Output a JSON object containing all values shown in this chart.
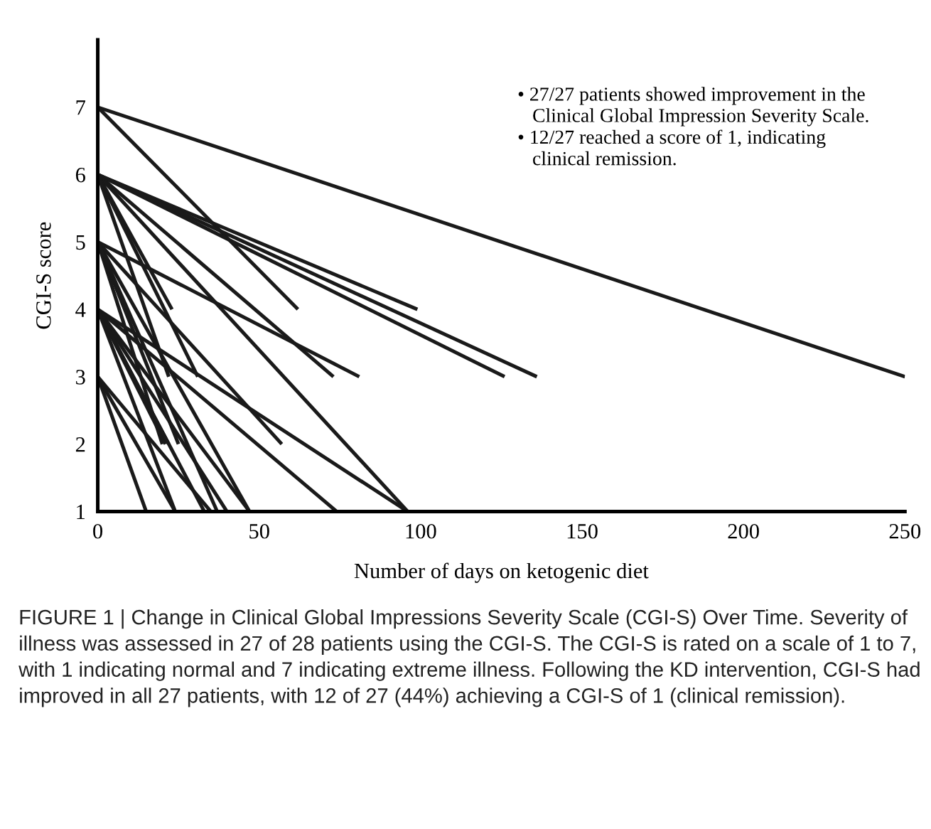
{
  "chart_data": {
    "type": "line",
    "xlabel": "Number of days on ketogenic diet",
    "ylabel": "CGI-S score",
    "xlim": [
      0,
      250
    ],
    "xticks": [
      0,
      50,
      100,
      150,
      200,
      250
    ],
    "ylim": [
      1,
      8
    ],
    "yticks": [
      1,
      2,
      3,
      4,
      5,
      6,
      7
    ],
    "grid": false,
    "legend": false,
    "marker": "none",
    "line_style": "solid",
    "series": [
      {
        "color": "#1a1a1a",
        "x": [
          0,
          250
        ],
        "values": [
          7,
          3
        ]
      },
      {
        "color": "#1a1a1a",
        "x": [
          0,
          62
        ],
        "values": [
          7,
          4
        ]
      },
      {
        "color": "#1a1a1a",
        "x": [
          0,
          99
        ],
        "values": [
          6,
          4
        ]
      },
      {
        "color": "#1a1a1a",
        "x": [
          0,
          126
        ],
        "values": [
          6,
          3
        ]
      },
      {
        "color": "#1a1a1a",
        "x": [
          0,
          136
        ],
        "values": [
          6,
          3
        ]
      },
      {
        "color": "#1a1a1a",
        "x": [
          0,
          73
        ],
        "values": [
          6,
          3
        ]
      },
      {
        "color": "#1a1a1a",
        "x": [
          0,
          96
        ],
        "values": [
          6,
          1
        ]
      },
      {
        "color": "#1a1a1a",
        "x": [
          0,
          23
        ],
        "values": [
          6,
          4
        ]
      },
      {
        "color": "#1a1a1a",
        "x": [
          0,
          31
        ],
        "values": [
          6,
          3
        ]
      },
      {
        "color": "#1a1a1a",
        "x": [
          0,
          22
        ],
        "values": [
          6,
          3
        ]
      },
      {
        "color": "#1a1a1a",
        "x": [
          0,
          81
        ],
        "values": [
          5,
          3
        ]
      },
      {
        "color": "#1a1a1a",
        "x": [
          0,
          57
        ],
        "values": [
          5,
          2
        ]
      },
      {
        "color": "#1a1a1a",
        "x": [
          0,
          20
        ],
        "values": [
          5,
          2
        ]
      },
      {
        "color": "#1a1a1a",
        "x": [
          0,
          25
        ],
        "values": [
          5,
          2
        ]
      },
      {
        "color": "#1a1a1a",
        "x": [
          0,
          47
        ],
        "values": [
          5,
          1
        ]
      },
      {
        "color": "#1a1a1a",
        "x": [
          0,
          37
        ],
        "values": [
          5,
          1
        ]
      },
      {
        "color": "#1a1a1a",
        "x": [
          0,
          96
        ],
        "values": [
          4,
          1
        ]
      },
      {
        "color": "#1a1a1a",
        "x": [
          0,
          74
        ],
        "values": [
          4,
          1
        ]
      },
      {
        "color": "#1a1a1a",
        "x": [
          0,
          21
        ],
        "values": [
          4,
          2
        ]
      },
      {
        "color": "#1a1a1a",
        "x": [
          0,
          22
        ],
        "values": [
          4,
          2
        ]
      },
      {
        "color": "#1a1a1a",
        "x": [
          0,
          47
        ],
        "values": [
          4,
          1
        ]
      },
      {
        "color": "#1a1a1a",
        "x": [
          0,
          40
        ],
        "values": [
          4,
          1
        ]
      },
      {
        "color": "#1a1a1a",
        "x": [
          0,
          33
        ],
        "values": [
          4,
          1
        ]
      },
      {
        "color": "#1a1a1a",
        "x": [
          0,
          24
        ],
        "values": [
          4,
          1
        ]
      },
      {
        "color": "#1a1a1a",
        "x": [
          0,
          15
        ],
        "values": [
          3,
          1
        ]
      },
      {
        "color": "#1a1a1a",
        "x": [
          0,
          24
        ],
        "values": [
          3,
          1
        ]
      },
      {
        "color": "#1a1a1a",
        "x": [
          0,
          35
        ],
        "values": [
          3,
          1
        ]
      }
    ],
    "annotations": [
      "• 27/27 patients showed improvement in the\n   Clinical Global Impression Severity Scale.\n• 12/27 reached a score of 1, indicating\n   clinical remission.",
      "FIGURE 1 | Change in Clinical Global Impressions Severity Scale (CGI-S) Over Time. Severity of illness was assessed in 27 of 28 patients using the CGI-S. The CGI-S is rated on a scale of 1 to 7, with 1 indicating normal and 7 indicating extreme illness. Following the KD intervention, CGI-S had improved in all 27 patients, with 12 of 27 (44%) achieving a CGI-S of 1 (clinical remission)."
    ]
  }
}
